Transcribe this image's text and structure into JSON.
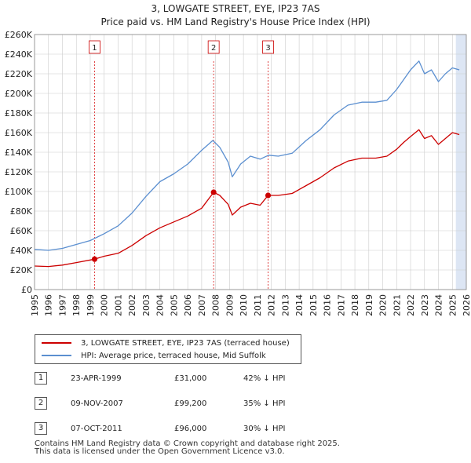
{
  "title_line1": "3, LOWGATE STREET, EYE, IP23 7AS",
  "title_line2": "Price paid vs. HM Land Registry's House Price Index (HPI)",
  "colors": {
    "property": "#cc0000",
    "hpi": "#5b8fd0",
    "shade": "#dde6f4",
    "grid": "#cccccc"
  },
  "legend": {
    "property_label": "3, LOWGATE STREET, EYE, IP23 7AS (terraced house)",
    "hpi_label": "HPI: Average price, terraced house, Mid Suffolk"
  },
  "transactions": [
    {
      "num": "1",
      "date": "23-APR-1999",
      "price": "£31,000",
      "hpi_diff": "42% ↓ HPI"
    },
    {
      "num": "2",
      "date": "09-NOV-2007",
      "price": "£99,200",
      "hpi_diff": "35% ↓ HPI"
    },
    {
      "num": "3",
      "date": "07-OCT-2011",
      "price": "£96,000",
      "hpi_diff": "30% ↓ HPI"
    }
  ],
  "footer": {
    "line1": "Contains HM Land Registry data © Crown copyright and database right 2025.",
    "line2": "This data is licensed under the Open Government Licence v3.0."
  },
  "chart_data": {
    "type": "line",
    "xlim": [
      1995,
      2026
    ],
    "ylim": [
      0,
      260000
    ],
    "x_ticks": [
      "1995",
      "1996",
      "1997",
      "1998",
      "1999",
      "2000",
      "2001",
      "2002",
      "2003",
      "2004",
      "2005",
      "2006",
      "2007",
      "2008",
      "2009",
      "2010",
      "2011",
      "2012",
      "2013",
      "2014",
      "2015",
      "2016",
      "2017",
      "2018",
      "2019",
      "2020",
      "2021",
      "2022",
      "2023",
      "2024",
      "2025",
      "2026"
    ],
    "y_ticks": [
      {
        "value": 0,
        "label": "£0"
      },
      {
        "value": 20000,
        "label": "£20K"
      },
      {
        "value": 40000,
        "label": "£40K"
      },
      {
        "value": 60000,
        "label": "£60K"
      },
      {
        "value": 80000,
        "label": "£80K"
      },
      {
        "value": 100000,
        "label": "£100K"
      },
      {
        "value": 120000,
        "label": "£120K"
      },
      {
        "value": 140000,
        "label": "£140K"
      },
      {
        "value": 160000,
        "label": "£160K"
      },
      {
        "value": 180000,
        "label": "£180K"
      },
      {
        "value": 200000,
        "label": "£200K"
      },
      {
        "value": 220000,
        "label": "£220K"
      },
      {
        "value": 240000,
        "label": "£240K"
      },
      {
        "value": 260000,
        "label": "£260K"
      }
    ],
    "shaded_from": 2025.25,
    "markers": [
      {
        "label": "1",
        "x": 1999.31,
        "y": 31000
      },
      {
        "label": "2",
        "x": 2007.86,
        "y": 99200
      },
      {
        "label": "3",
        "x": 2011.77,
        "y": 96000
      }
    ],
    "series": [
      {
        "name": "3, LOWGATE STREET, EYE, IP23 7AS (terraced house)",
        "color": "#cc0000",
        "points": [
          [
            1995,
            24000
          ],
          [
            1996,
            23500
          ],
          [
            1997,
            25000
          ],
          [
            1998,
            27500
          ],
          [
            1999.3,
            31000
          ],
          [
            2000,
            34000
          ],
          [
            2001,
            37000
          ],
          [
            2002,
            45000
          ],
          [
            2003,
            55000
          ],
          [
            2004,
            63000
          ],
          [
            2005,
            69000
          ],
          [
            2006,
            75000
          ],
          [
            2007,
            83000
          ],
          [
            2007.86,
            99200
          ],
          [
            2008.3,
            96000
          ],
          [
            2008.9,
            87000
          ],
          [
            2009.2,
            76000
          ],
          [
            2009.8,
            84000
          ],
          [
            2010.5,
            88000
          ],
          [
            2011.2,
            86000
          ],
          [
            2011.77,
            96000
          ],
          [
            2012.5,
            96000
          ],
          [
            2013.5,
            98000
          ],
          [
            2014.5,
            106000
          ],
          [
            2015.5,
            114000
          ],
          [
            2016.5,
            124000
          ],
          [
            2017.5,
            131000
          ],
          [
            2018.5,
            134000
          ],
          [
            2019.5,
            134000
          ],
          [
            2020.3,
            136000
          ],
          [
            2021,
            143000
          ],
          [
            2021.5,
            150000
          ],
          [
            2022,
            156000
          ],
          [
            2022.6,
            163000
          ],
          [
            2023,
            154000
          ],
          [
            2023.5,
            157000
          ],
          [
            2024,
            148000
          ],
          [
            2024.5,
            154000
          ],
          [
            2025,
            160000
          ],
          [
            2025.5,
            158000
          ]
        ]
      },
      {
        "name": "HPI: Average price, terraced house, Mid Suffolk",
        "color": "#5b8fd0",
        "points": [
          [
            1995,
            41000
          ],
          [
            1996,
            40000
          ],
          [
            1997,
            42000
          ],
          [
            1998,
            46000
          ],
          [
            1999,
            50000
          ],
          [
            2000,
            57000
          ],
          [
            2001,
            65000
          ],
          [
            2002,
            78000
          ],
          [
            2003,
            95000
          ],
          [
            2004,
            110000
          ],
          [
            2005,
            118000
          ],
          [
            2006,
            128000
          ],
          [
            2007,
            142000
          ],
          [
            2007.8,
            152000
          ],
          [
            2008.3,
            145000
          ],
          [
            2008.9,
            130000
          ],
          [
            2009.2,
            115000
          ],
          [
            2009.8,
            128000
          ],
          [
            2010.5,
            136000
          ],
          [
            2011.2,
            133000
          ],
          [
            2011.8,
            137000
          ],
          [
            2012.5,
            136000
          ],
          [
            2013.5,
            139000
          ],
          [
            2014.5,
            152000
          ],
          [
            2015.5,
            163000
          ],
          [
            2016.5,
            178000
          ],
          [
            2017.5,
            188000
          ],
          [
            2018.5,
            191000
          ],
          [
            2019.5,
            191000
          ],
          [
            2020.3,
            193000
          ],
          [
            2021,
            204000
          ],
          [
            2021.5,
            214000
          ],
          [
            2022,
            224000
          ],
          [
            2022.6,
            233000
          ],
          [
            2023,
            220000
          ],
          [
            2023.5,
            224000
          ],
          [
            2024,
            212000
          ],
          [
            2024.5,
            220000
          ],
          [
            2025,
            226000
          ],
          [
            2025.5,
            224000
          ]
        ]
      }
    ]
  }
}
